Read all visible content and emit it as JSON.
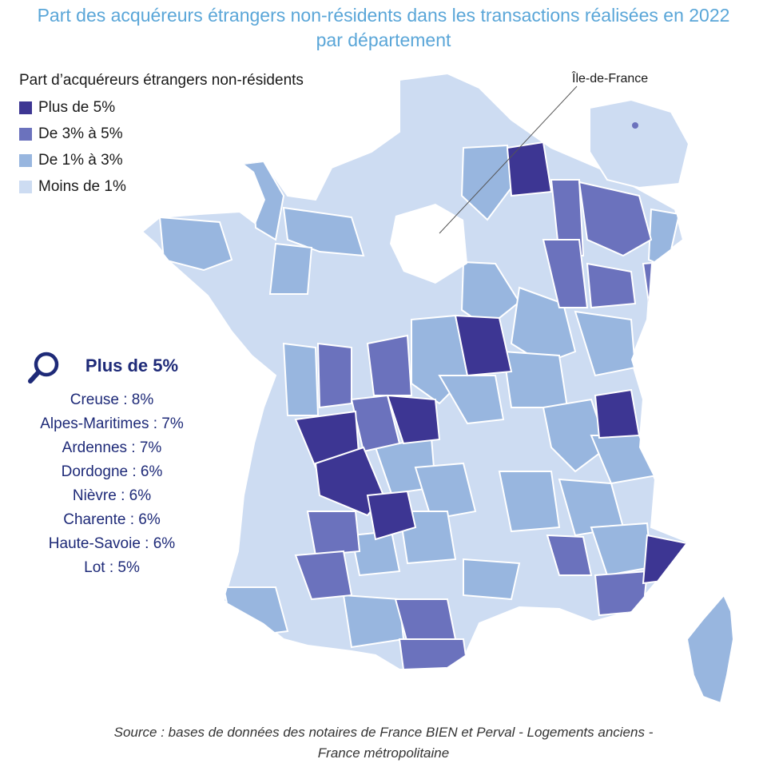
{
  "title": {
    "line1": "Part des acquéreurs étrangers non-résidents dans les transactions réalisées en 2022",
    "line2": "par département"
  },
  "legend": {
    "title": "Part d’acquéreurs étrangers non-résidents",
    "items": [
      {
        "label": "Plus de 5%",
        "color": "#3d3693"
      },
      {
        "label": "De 3% à 5%",
        "color": "#6b72bd"
      },
      {
        "label": "De 1% à 3%",
        "color": "#98b6df"
      },
      {
        "label": "Moins de 1%",
        "color": "#cddcf2"
      }
    ]
  },
  "top": {
    "title": "Plus de 5%",
    "icon": "magnifier-icon",
    "items": [
      "Creuse : 8%",
      "Alpes-Maritimes : 7%",
      "Ardennes : 7%",
      "Dordogne : 6%",
      "Nièvre : 6%",
      "Charente : 6%",
      "Haute-Savoie : 6%",
      "Lot : 5%"
    ]
  },
  "inset": {
    "label": "Île-de-France"
  },
  "source": {
    "line1": "Source : bases de données des notaires de France BIEN et Perval - Logements anciens -",
    "line2": "France métropolitaine"
  },
  "colors": {
    "high": "#3d3693",
    "mid": "#6b72bd",
    "low": "#98b6df",
    "verylow": "#cddcf2",
    "title": "#5aa6d8",
    "accent": "#1e2a78"
  }
}
